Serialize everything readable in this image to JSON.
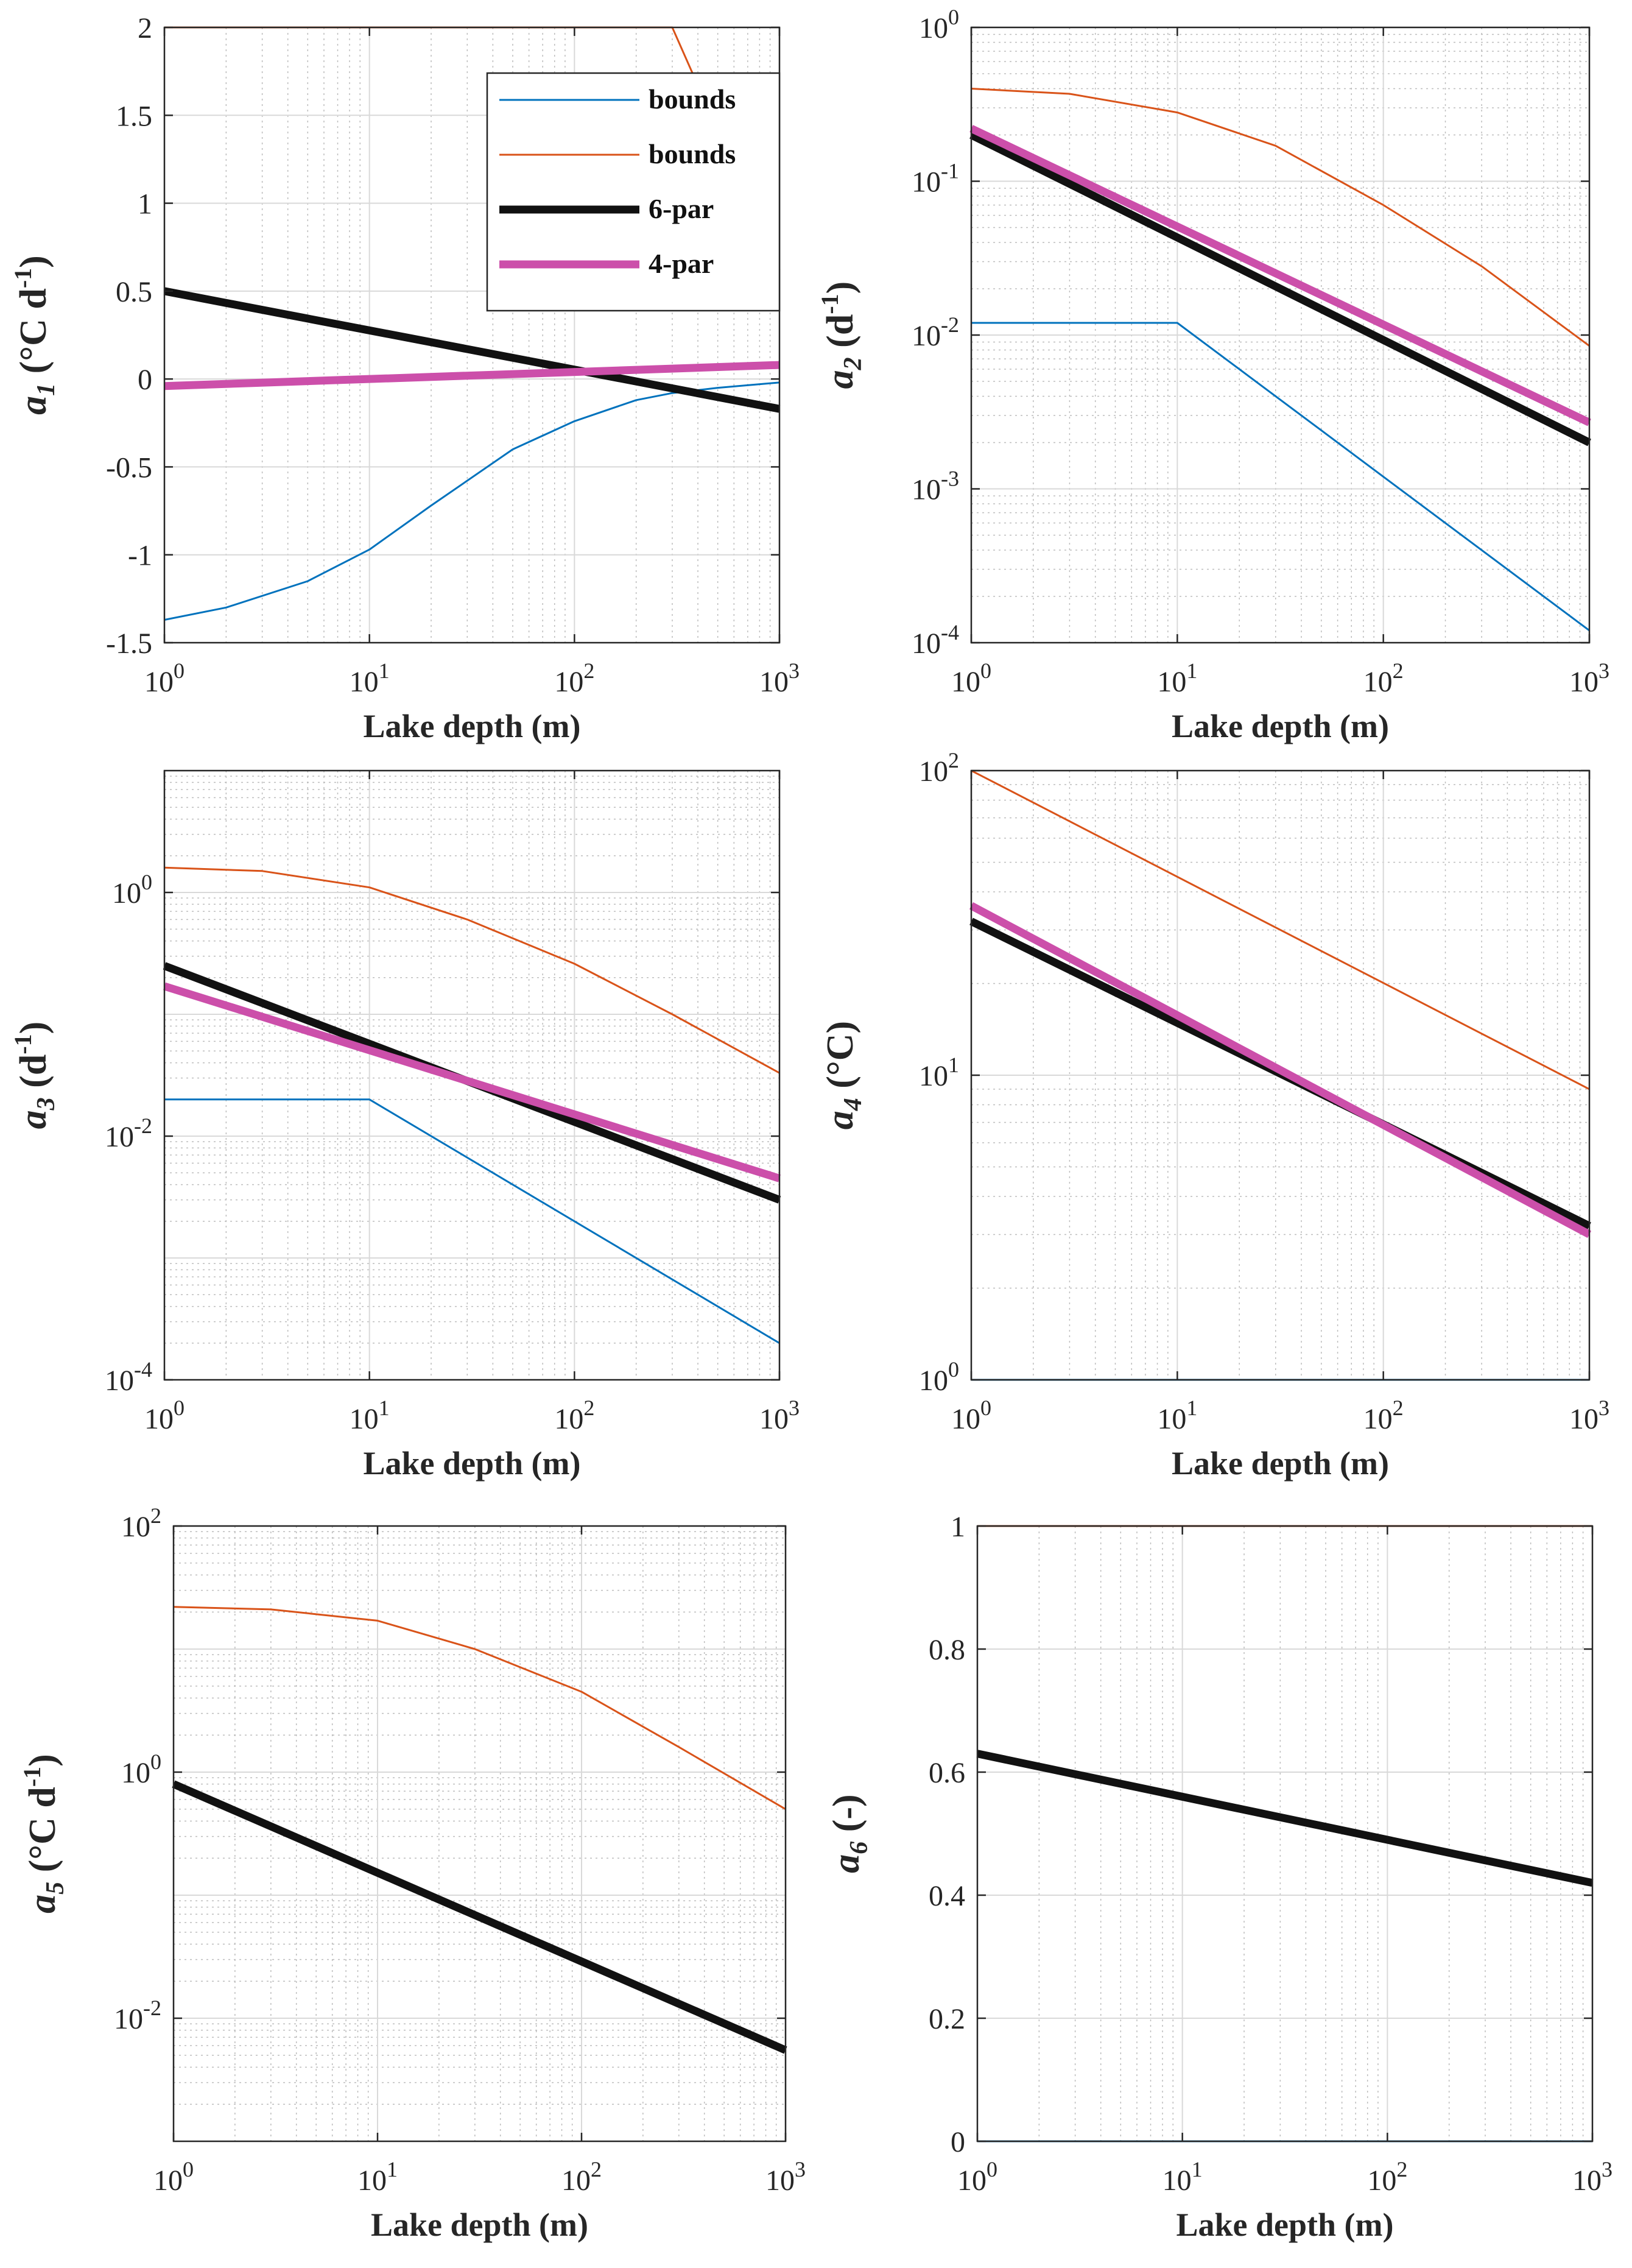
{
  "chart_data": [
    {
      "type": "line",
      "panel": "a1",
      "ylabel": {
        "sym": "a",
        "sub": "1",
        "unit": " (°C d",
        "sup": "-1",
        "end": ")"
      },
      "xlabel": "Lake depth (m)",
      "xscale": "log",
      "xlim": [
        1,
        1000
      ],
      "yscale": "linear",
      "ylim": [
        -1.5,
        2
      ],
      "yticks": [
        -1.5,
        -1,
        -0.5,
        0,
        0.5,
        1,
        1.5,
        2
      ],
      "ytick_labels": [
        "-1.5",
        "-1",
        "-0.5",
        "0",
        "0.5",
        "1",
        "1.5",
        "2"
      ],
      "xtick_labels": [
        {
          "base": "10",
          "exp": "0"
        },
        {
          "base": "10",
          "exp": "1"
        },
        {
          "base": "10",
          "exp": "2"
        },
        {
          "base": "10",
          "exp": "3"
        }
      ],
      "grid": true,
      "legend": {
        "position": "top-right",
        "entries": [
          {
            "label": "bounds",
            "color": "#0072BD"
          },
          {
            "label": "bounds",
            "color": "#D95319"
          },
          {
            "label": "6-par",
            "color": "#111111"
          },
          {
            "label": "4-par",
            "color": "#CC4FAA"
          }
        ]
      },
      "series": [
        {
          "name": "bounds",
          "role": "lower",
          "color": "#0072BD",
          "x": [
            1,
            2,
            5,
            10,
            20,
            50,
            100,
            200,
            300,
            500,
            1000
          ],
          "y": [
            -1.37,
            -1.3,
            -1.15,
            -0.97,
            -0.72,
            -0.4,
            -0.24,
            -0.12,
            -0.08,
            -0.05,
            -0.02
          ]
        },
        {
          "name": "bounds",
          "role": "upper",
          "color": "#D95319",
          "x": [
            1,
            300,
            1000
          ],
          "y": [
            2,
            2,
            0.62
          ]
        },
        {
          "name": "6-par",
          "color": "#111111",
          "x": [
            1,
            1000
          ],
          "y": [
            0.5,
            -0.17
          ]
        },
        {
          "name": "4-par",
          "color": "#CC4FAA",
          "x": [
            1,
            1000
          ],
          "y": [
            -0.04,
            0.08
          ]
        }
      ]
    },
    {
      "type": "line",
      "panel": "a2",
      "ylabel": {
        "sym": "a",
        "sub": "2",
        "unit": " (d",
        "sup": "-1",
        "end": ")"
      },
      "xlabel": "Lake depth (m)",
      "xscale": "log",
      "xlim": [
        1,
        1000
      ],
      "yscale": "log",
      "ylim": [
        0.0001,
        1
      ],
      "yticks": [
        0.0001,
        0.001,
        0.01,
        0.1,
        1
      ],
      "ytick_labels": [
        {
          "base": "10",
          "exp": "-4"
        },
        {
          "base": "10",
          "exp": "-3"
        },
        {
          "base": "10",
          "exp": "-2"
        },
        {
          "base": "10",
          "exp": "-1"
        },
        {
          "base": "10",
          "exp": "0"
        }
      ],
      "xtick_labels": [
        {
          "base": "10",
          "exp": "0"
        },
        {
          "base": "10",
          "exp": "1"
        },
        {
          "base": "10",
          "exp": "2"
        },
        {
          "base": "10",
          "exp": "3"
        }
      ],
      "grid": true,
      "series": [
        {
          "name": "bounds",
          "role": "lower",
          "color": "#0072BD",
          "x": [
            1,
            10,
            1000
          ],
          "y": [
            0.012,
            0.012,
            0.00012
          ]
        },
        {
          "name": "bounds",
          "role": "upper",
          "color": "#D95319",
          "x": [
            1,
            3,
            10,
            30,
            100,
            300,
            1000
          ],
          "y": [
            0.4,
            0.37,
            0.28,
            0.17,
            0.07,
            0.028,
            0.0085
          ]
        },
        {
          "name": "6-par",
          "color": "#111111",
          "x": [
            1,
            1000
          ],
          "y": [
            0.2,
            0.002
          ]
        },
        {
          "name": "4-par",
          "color": "#CC4FAA",
          "x": [
            1,
            1000
          ],
          "y": [
            0.22,
            0.0027
          ]
        }
      ]
    },
    {
      "type": "line",
      "panel": "a3",
      "ylabel": {
        "sym": "a",
        "sub": "3",
        "unit": " (d",
        "sup": "-1",
        "end": ")"
      },
      "xlabel": "Lake depth (m)",
      "xscale": "log",
      "xlim": [
        1,
        1000
      ],
      "yscale": "log",
      "ylim": [
        0.0001,
        10
      ],
      "yticks": [
        0.0001,
        0.01,
        1
      ],
      "ytick_labels": [
        {
          "base": "10",
          "exp": "-4"
        },
        {
          "base": "10",
          "exp": "-2"
        },
        {
          "base": "10",
          "exp": "0"
        }
      ],
      "xtick_labels": [
        {
          "base": "10",
          "exp": "0"
        },
        {
          "base": "10",
          "exp": "1"
        },
        {
          "base": "10",
          "exp": "2"
        },
        {
          "base": "10",
          "exp": "3"
        }
      ],
      "grid": true,
      "series": [
        {
          "name": "bounds",
          "role": "lower",
          "color": "#0072BD",
          "x": [
            1,
            10,
            1000
          ],
          "y": [
            0.02,
            0.02,
            0.0002
          ]
        },
        {
          "name": "bounds",
          "role": "upper",
          "color": "#D95319",
          "x": [
            1,
            3,
            10,
            30,
            100,
            300,
            1000
          ],
          "y": [
            1.6,
            1.5,
            1.1,
            0.6,
            0.26,
            0.1,
            0.033
          ]
        },
        {
          "name": "6-par",
          "color": "#111111",
          "x": [
            1,
            1000
          ],
          "y": [
            0.25,
            0.003
          ]
        },
        {
          "name": "4-par",
          "color": "#CC4FAA",
          "x": [
            1,
            1000
          ],
          "y": [
            0.17,
            0.0045
          ]
        }
      ]
    },
    {
      "type": "line",
      "panel": "a4",
      "ylabel": {
        "sym": "a",
        "sub": "4",
        "unit": " (°C)",
        "sup": "",
        "end": ""
      },
      "xlabel": "Lake depth (m)",
      "xscale": "log",
      "xlim": [
        1,
        1000
      ],
      "yscale": "log",
      "ylim": [
        1,
        100
      ],
      "yticks": [
        1,
        10,
        100
      ],
      "ytick_labels": [
        {
          "base": "10",
          "exp": "0"
        },
        {
          "base": "10",
          "exp": "1"
        },
        {
          "base": "10",
          "exp": "2"
        }
      ],
      "xtick_labels": [
        {
          "base": "10",
          "exp": "0"
        },
        {
          "base": "10",
          "exp": "1"
        },
        {
          "base": "10",
          "exp": "2"
        },
        {
          "base": "10",
          "exp": "3"
        }
      ],
      "grid": true,
      "series": [
        {
          "name": "bounds",
          "role": "lower",
          "color": "#0072BD",
          "x": [
            1,
            1000
          ],
          "y": [
            1,
            1
          ]
        },
        {
          "name": "bounds",
          "role": "upper",
          "color": "#D95319",
          "x": [
            1,
            1000
          ],
          "y": [
            100,
            9
          ]
        },
        {
          "name": "6-par",
          "color": "#111111",
          "x": [
            1,
            1000
          ],
          "y": [
            32,
            3.2
          ]
        },
        {
          "name": "4-par",
          "color": "#CC4FAA",
          "x": [
            1,
            1000
          ],
          "y": [
            36,
            3.0
          ]
        }
      ]
    },
    {
      "type": "line",
      "panel": "a5",
      "ylabel": {
        "sym": "a",
        "sub": "5",
        "unit": " (°C d",
        "sup": "-1",
        "end": ")"
      },
      "xlabel": "Lake depth (m)",
      "xscale": "log",
      "xlim": [
        1,
        1000
      ],
      "yscale": "log",
      "ylim": [
        0.001,
        100
      ],
      "yticks": [
        0.01,
        1,
        100
      ],
      "ytick_labels": [
        {
          "base": "10",
          "exp": "-2"
        },
        {
          "base": "10",
          "exp": "0"
        },
        {
          "base": "10",
          "exp": "2"
        }
      ],
      "xtick_labels": [
        {
          "base": "10",
          "exp": "0"
        },
        {
          "base": "10",
          "exp": "1"
        },
        {
          "base": "10",
          "exp": "2"
        },
        {
          "base": "10",
          "exp": "3"
        }
      ],
      "grid": true,
      "series": [
        {
          "name": "bounds",
          "role": "upper",
          "color": "#D95319",
          "x": [
            1,
            3,
            10,
            30,
            100,
            300,
            1000
          ],
          "y": [
            22,
            21,
            17,
            10,
            4.5,
            1.6,
            0.5
          ]
        },
        {
          "name": "6-par",
          "color": "#111111",
          "x": [
            1,
            1000
          ],
          "y": [
            0.8,
            0.0055
          ]
        }
      ]
    },
    {
      "type": "line",
      "panel": "a6",
      "ylabel": {
        "sym": "a",
        "sub": "6",
        "unit": " (-)",
        "sup": "",
        "end": ""
      },
      "xlabel": "Lake depth (m)",
      "xscale": "log",
      "xlim": [
        1,
        1000
      ],
      "yscale": "linear",
      "ylim": [
        0,
        1
      ],
      "yticks": [
        0,
        0.2,
        0.4,
        0.6,
        0.8,
        1
      ],
      "ytick_labels": [
        "0",
        "0.2",
        "0.4",
        "0.6",
        "0.8",
        "1"
      ],
      "xtick_labels": [
        {
          "base": "10",
          "exp": "0"
        },
        {
          "base": "10",
          "exp": "1"
        },
        {
          "base": "10",
          "exp": "2"
        },
        {
          "base": "10",
          "exp": "3"
        }
      ],
      "grid": true,
      "series": [
        {
          "name": "bounds",
          "role": "lower",
          "color": "#0072BD",
          "x": [
            1,
            1000
          ],
          "y": [
            0,
            0
          ]
        },
        {
          "name": "bounds",
          "role": "upper",
          "color": "#D95319",
          "x": [
            1,
            1000
          ],
          "y": [
            1,
            1
          ]
        },
        {
          "name": "6-par",
          "color": "#111111",
          "x": [
            1,
            1000
          ],
          "y": [
            0.63,
            0.42
          ]
        }
      ]
    }
  ]
}
